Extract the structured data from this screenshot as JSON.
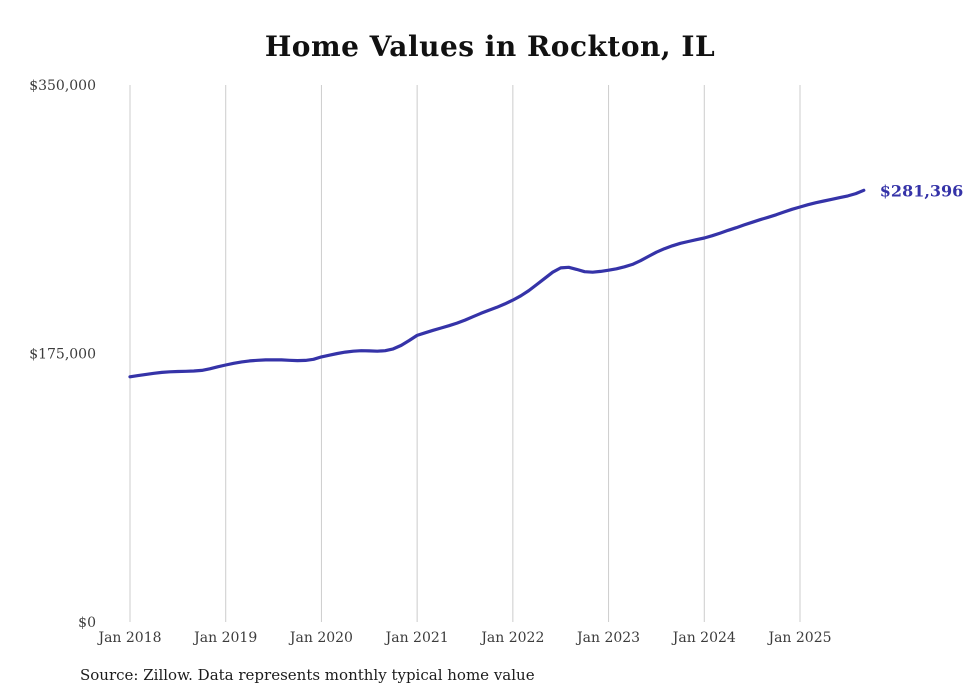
{
  "title": "Home Values in Rockton, IL",
  "end_label": "$281,396",
  "source_note": "Source: Zillow. Data represents monthly typical home value",
  "colors": {
    "accent": "#3533a8",
    "grid": "#cccccc",
    "tick_text": "#3c3c3c"
  },
  "chart_data": {
    "type": "line",
    "title": "Home Values in Rockton, IL",
    "xlabel": "",
    "ylabel": "",
    "ylim": [
      0,
      350000
    ],
    "y_ticks": [
      0,
      175000,
      350000
    ],
    "y_tick_labels": [
      "$0",
      "$175,000",
      "$350,000"
    ],
    "x_tick_labels": [
      "Jan 2018",
      "Jan 2019",
      "Jan 2020",
      "Jan 2021",
      "Jan 2022",
      "Jan 2023",
      "Jan 2024",
      "Jan 2025"
    ],
    "grid": "vertical-gridlines-only",
    "legend": "none",
    "annotation": "$281,396",
    "x": [
      "2018-01",
      "2018-02",
      "2018-03",
      "2018-04",
      "2018-05",
      "2018-06",
      "2018-07",
      "2018-08",
      "2018-09",
      "2018-10",
      "2018-11",
      "2018-12",
      "2019-01",
      "2019-02",
      "2019-03",
      "2019-04",
      "2019-05",
      "2019-06",
      "2019-07",
      "2019-08",
      "2019-09",
      "2019-10",
      "2019-11",
      "2019-12",
      "2020-01",
      "2020-02",
      "2020-03",
      "2020-04",
      "2020-05",
      "2020-06",
      "2020-07",
      "2020-08",
      "2020-09",
      "2020-10",
      "2020-11",
      "2020-12",
      "2021-01",
      "2021-02",
      "2021-03",
      "2021-04",
      "2021-05",
      "2021-06",
      "2021-07",
      "2021-08",
      "2021-09",
      "2021-10",
      "2021-11",
      "2021-12",
      "2022-01",
      "2022-02",
      "2022-03",
      "2022-04",
      "2022-05",
      "2022-06",
      "2022-07",
      "2022-08",
      "2022-09",
      "2022-10",
      "2022-11",
      "2022-12",
      "2023-01",
      "2023-02",
      "2023-03",
      "2023-04",
      "2023-05",
      "2023-06",
      "2023-07",
      "2023-08",
      "2023-09",
      "2023-10",
      "2023-11",
      "2023-12",
      "2024-01",
      "2024-02",
      "2024-03",
      "2024-04",
      "2024-05",
      "2024-06",
      "2024-07",
      "2024-08",
      "2024-09",
      "2024-10",
      "2024-11",
      "2024-12",
      "2025-01",
      "2025-02",
      "2025-03",
      "2025-04",
      "2025-05",
      "2025-06",
      "2025-07",
      "2025-08",
      "2025-09"
    ],
    "values": [
      159800,
      160600,
      161400,
      162100,
      162700,
      163100,
      163300,
      163400,
      163600,
      164000,
      165000,
      166300,
      167500,
      168600,
      169500,
      170200,
      170600,
      170800,
      170900,
      170800,
      170600,
      170400,
      170500,
      171200,
      172800,
      173900,
      175000,
      175900,
      176500,
      176800,
      176700,
      176500,
      176800,
      178000,
      180300,
      183500,
      186800,
      188500,
      190100,
      191600,
      193100,
      194800,
      196800,
      199000,
      201200,
      203200,
      205100,
      207300,
      209800,
      212600,
      216000,
      220000,
      224000,
      228000,
      230800,
      231200,
      229800,
      228300,
      228000,
      228500,
      229300,
      230200,
      231500,
      233100,
      235500,
      238300,
      241000,
      243300,
      245200,
      246800,
      248000,
      249200,
      250300,
      251800,
      253500,
      255300,
      257000,
      258800,
      260500,
      262200,
      263800,
      265400,
      267200,
      269000,
      270500,
      272000,
      273300,
      274400,
      275500,
      276600,
      277700,
      279200,
      281396
    ]
  }
}
